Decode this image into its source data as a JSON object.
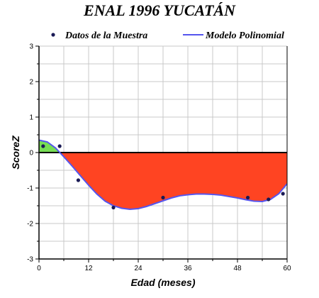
{
  "chart_data": {
    "type": "scatter",
    "title": "ENAL 1996 YUCATÁN",
    "xlabel": "Edad (meses)",
    "ylabel": "ScoreZ",
    "xlim": [
      0,
      60
    ],
    "ylim": [
      -3,
      3
    ],
    "xticks": [
      0,
      12,
      24,
      36,
      48,
      60
    ],
    "yticks": [
      -3,
      -2,
      -1,
      0,
      1,
      2,
      3
    ],
    "grid": true,
    "legend_position": "top",
    "series": [
      {
        "name": "Datos de la Muestra",
        "kind": "points",
        "color": "#1a1a55",
        "x": [
          1,
          5,
          9.5,
          18,
          30,
          50.5,
          55.5,
          59
        ],
        "y": [
          0.18,
          0.18,
          -0.78,
          -1.55,
          -1.27,
          -1.27,
          -1.32,
          -1.16
        ]
      },
      {
        "name": "Modelo Polinomial",
        "kind": "line",
        "color": "#5555ee",
        "x": [
          0,
          2,
          4,
          6,
          8,
          10,
          12,
          14,
          16,
          18,
          20,
          22,
          24,
          26,
          28,
          30,
          32,
          34,
          36,
          38,
          40,
          42,
          44,
          46,
          48,
          50,
          52,
          54,
          56,
          58,
          60
        ],
        "y": [
          0.35,
          0.3,
          0.13,
          -0.12,
          -0.38,
          -0.65,
          -0.92,
          -1.17,
          -1.37,
          -1.5,
          -1.57,
          -1.6,
          -1.58,
          -1.52,
          -1.44,
          -1.36,
          -1.28,
          -1.22,
          -1.19,
          -1.17,
          -1.17,
          -1.18,
          -1.2,
          -1.24,
          -1.28,
          -1.33,
          -1.37,
          -1.38,
          -1.32,
          -1.16,
          -0.88
        ]
      }
    ],
    "fill_above_color": "#77dd55",
    "fill_below_color": "#ff4422",
    "zero_line_color": "#000000"
  }
}
